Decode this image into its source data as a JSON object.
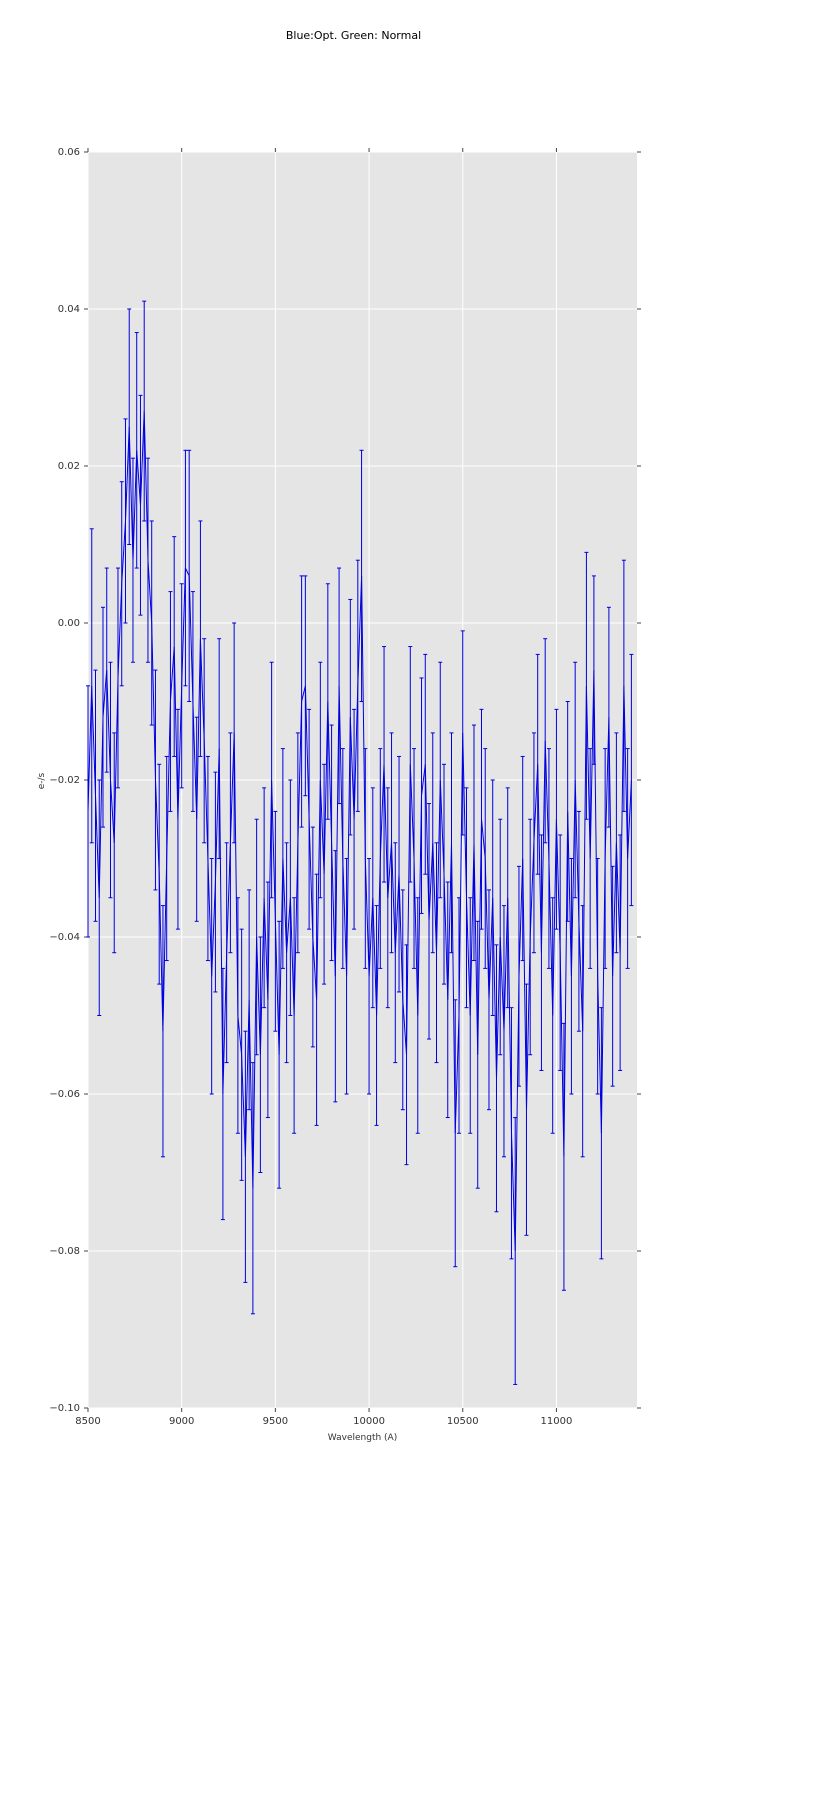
{
  "chart_data": {
    "type": "line",
    "title": "Blue:Opt. Green: Normal",
    "xlabel": "Wavelength (A)",
    "ylabel": "e-/s",
    "xlim": [
      8500,
      11430
    ],
    "ylim": [
      -0.1,
      0.06
    ],
    "xticks": [
      8500,
      9000,
      9500,
      10000,
      10500,
      11000
    ],
    "xtick_labels": [
      "8500",
      "9000",
      "9500",
      "10000",
      "10500",
      "11000"
    ],
    "yticks": [
      0.06,
      0.04,
      0.02,
      0.0,
      -0.02,
      -0.04,
      -0.06,
      -0.08,
      -0.1
    ],
    "ytick_labels": [
      "0.06",
      "0.04",
      "0.02",
      "0.00",
      "−0.02",
      "−0.04",
      "−0.06",
      "−0.08",
      "−0.10"
    ],
    "grid": true,
    "legend": "none",
    "style": {
      "plot_bg": "#e5e5e5",
      "grid_color": "#ffffff",
      "line_color": "#0000e0",
      "tick_color": "#444444",
      "tick_label_color": "#333333"
    },
    "series": [
      {
        "name": "spectrum-with-errorbars",
        "color": "#0000e0",
        "points": [
          [
            8500,
            -0.024,
            0.016
          ],
          [
            8520,
            -0.008,
            0.02
          ],
          [
            8540,
            -0.022,
            0.016
          ],
          [
            8560,
            -0.035,
            0.015
          ],
          [
            8580,
            -0.012,
            0.014
          ],
          [
            8600,
            -0.006,
            0.013
          ],
          [
            8620,
            -0.02,
            0.015
          ],
          [
            8640,
            -0.028,
            0.014
          ],
          [
            8660,
            -0.007,
            0.014
          ],
          [
            8680,
            0.005,
            0.013
          ],
          [
            8700,
            0.013,
            0.013
          ],
          [
            8720,
            0.025,
            0.015
          ],
          [
            8740,
            0.008,
            0.013
          ],
          [
            8760,
            0.022,
            0.015
          ],
          [
            8780,
            0.015,
            0.014
          ],
          [
            8800,
            0.027,
            0.014
          ],
          [
            8820,
            0.008,
            0.013
          ],
          [
            8840,
            0.0,
            0.013
          ],
          [
            8860,
            -0.02,
            0.014
          ],
          [
            8880,
            -0.032,
            0.014
          ],
          [
            8900,
            -0.052,
            0.016
          ],
          [
            8920,
            -0.03,
            0.013
          ],
          [
            8940,
            -0.01,
            0.014
          ],
          [
            8960,
            -0.003,
            0.014
          ],
          [
            8980,
            -0.025,
            0.014
          ],
          [
            9000,
            -0.008,
            0.013
          ],
          [
            9020,
            0.007,
            0.015
          ],
          [
            9040,
            0.006,
            0.016
          ],
          [
            9060,
            -0.01,
            0.014
          ],
          [
            9080,
            -0.025,
            0.013
          ],
          [
            9100,
            -0.002,
            0.015
          ],
          [
            9120,
            -0.015,
            0.013
          ],
          [
            9140,
            -0.03,
            0.013
          ],
          [
            9160,
            -0.045,
            0.015
          ],
          [
            9180,
            -0.033,
            0.014
          ],
          [
            9200,
            -0.016,
            0.014
          ],
          [
            9220,
            -0.06,
            0.016
          ],
          [
            9240,
            -0.042,
            0.014
          ],
          [
            9260,
            -0.028,
            0.014
          ],
          [
            9280,
            -0.014,
            0.014
          ],
          [
            9300,
            -0.05,
            0.015
          ],
          [
            9320,
            -0.055,
            0.016
          ],
          [
            9340,
            -0.068,
            0.016
          ],
          [
            9360,
            -0.048,
            0.014
          ],
          [
            9380,
            -0.072,
            0.016
          ],
          [
            9400,
            -0.04,
            0.015
          ],
          [
            9420,
            -0.055,
            0.015
          ],
          [
            9440,
            -0.035,
            0.014
          ],
          [
            9460,
            -0.048,
            0.015
          ],
          [
            9480,
            -0.02,
            0.015
          ],
          [
            9500,
            -0.038,
            0.014
          ],
          [
            9520,
            -0.055,
            0.017
          ],
          [
            9540,
            -0.03,
            0.014
          ],
          [
            9560,
            -0.042,
            0.014
          ],
          [
            9580,
            -0.035,
            0.015
          ],
          [
            9600,
            -0.05,
            0.015
          ],
          [
            9620,
            -0.028,
            0.014
          ],
          [
            9640,
            -0.01,
            0.016
          ],
          [
            9660,
            -0.008,
            0.014
          ],
          [
            9680,
            -0.025,
            0.014
          ],
          [
            9700,
            -0.04,
            0.014
          ],
          [
            9720,
            -0.048,
            0.016
          ],
          [
            9740,
            -0.02,
            0.015
          ],
          [
            9760,
            -0.032,
            0.014
          ],
          [
            9780,
            -0.01,
            0.015
          ],
          [
            9800,
            -0.028,
            0.015
          ],
          [
            9820,
            -0.045,
            0.016
          ],
          [
            9840,
            -0.008,
            0.015
          ],
          [
            9860,
            -0.03,
            0.014
          ],
          [
            9880,
            -0.045,
            0.015
          ],
          [
            9900,
            -0.012,
            0.015
          ],
          [
            9920,
            -0.025,
            0.014
          ],
          [
            9940,
            -0.008,
            0.016
          ],
          [
            9960,
            0.006,
            0.016
          ],
          [
            9980,
            -0.03,
            0.014
          ],
          [
            10000,
            -0.045,
            0.015
          ],
          [
            10020,
            -0.035,
            0.014
          ],
          [
            10040,
            -0.05,
            0.014
          ],
          [
            10060,
            -0.03,
            0.014
          ],
          [
            10080,
            -0.018,
            0.015
          ],
          [
            10100,
            -0.035,
            0.014
          ],
          [
            10120,
            -0.028,
            0.014
          ],
          [
            10140,
            -0.042,
            0.014
          ],
          [
            10160,
            -0.032,
            0.015
          ],
          [
            10180,
            -0.048,
            0.014
          ],
          [
            10200,
            -0.055,
            0.014
          ],
          [
            10220,
            -0.018,
            0.015
          ],
          [
            10240,
            -0.03,
            0.014
          ],
          [
            10260,
            -0.05,
            0.015
          ],
          [
            10280,
            -0.022,
            0.015
          ],
          [
            10300,
            -0.018,
            0.014
          ],
          [
            10320,
            -0.038,
            0.015
          ],
          [
            10340,
            -0.028,
            0.014
          ],
          [
            10360,
            -0.042,
            0.014
          ],
          [
            10380,
            -0.02,
            0.015
          ],
          [
            10400,
            -0.032,
            0.014
          ],
          [
            10420,
            -0.048,
            0.015
          ],
          [
            10440,
            -0.028,
            0.014
          ],
          [
            10460,
            -0.065,
            0.017
          ],
          [
            10480,
            -0.05,
            0.015
          ],
          [
            10500,
            -0.014,
            0.013
          ],
          [
            10520,
            -0.035,
            0.014
          ],
          [
            10540,
            -0.05,
            0.015
          ],
          [
            10560,
            -0.028,
            0.015
          ],
          [
            10580,
            -0.055,
            0.017
          ],
          [
            10600,
            -0.025,
            0.014
          ],
          [
            10620,
            -0.03,
            0.014
          ],
          [
            10640,
            -0.048,
            0.014
          ],
          [
            10660,
            -0.035,
            0.015
          ],
          [
            10680,
            -0.058,
            0.017
          ],
          [
            10700,
            -0.04,
            0.015
          ],
          [
            10720,
            -0.052,
            0.016
          ],
          [
            10740,
            -0.035,
            0.014
          ],
          [
            10760,
            -0.065,
            0.016
          ],
          [
            10780,
            -0.08,
            0.017
          ],
          [
            10800,
            -0.045,
            0.014
          ],
          [
            10820,
            -0.03,
            0.013
          ],
          [
            10840,
            -0.062,
            0.016
          ],
          [
            10860,
            -0.04,
            0.015
          ],
          [
            10880,
            -0.028,
            0.014
          ],
          [
            10900,
            -0.018,
            0.014
          ],
          [
            10920,
            -0.042,
            0.015
          ],
          [
            10940,
            -0.015,
            0.013
          ],
          [
            10960,
            -0.03,
            0.014
          ],
          [
            10980,
            -0.05,
            0.015
          ],
          [
            11000,
            -0.025,
            0.014
          ],
          [
            11020,
            -0.042,
            0.015
          ],
          [
            11040,
            -0.068,
            0.017
          ],
          [
            11060,
            -0.024,
            0.014
          ],
          [
            11080,
            -0.045,
            0.015
          ],
          [
            11100,
            -0.02,
            0.015
          ],
          [
            11120,
            -0.038,
            0.014
          ],
          [
            11140,
            -0.052,
            0.016
          ],
          [
            11160,
            -0.008,
            0.017
          ],
          [
            11180,
            -0.03,
            0.014
          ],
          [
            11200,
            -0.006,
            0.012
          ],
          [
            11220,
            -0.045,
            0.015
          ],
          [
            11240,
            -0.065,
            0.016
          ],
          [
            11260,
            -0.03,
            0.014
          ],
          [
            11280,
            -0.012,
            0.014
          ],
          [
            11300,
            -0.045,
            0.014
          ],
          [
            11320,
            -0.028,
            0.014
          ],
          [
            11340,
            -0.042,
            0.015
          ],
          [
            11360,
            -0.008,
            0.016
          ],
          [
            11380,
            -0.03,
            0.014
          ],
          [
            11400,
            -0.02,
            0.016
          ]
        ]
      }
    ]
  }
}
